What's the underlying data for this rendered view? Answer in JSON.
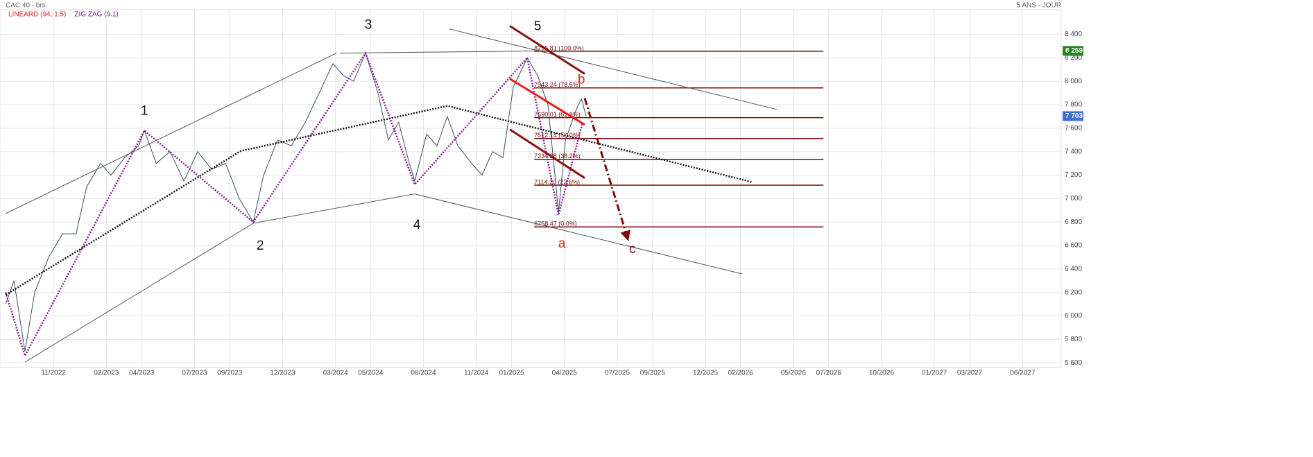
{
  "chart_data": {
    "type": "line",
    "title": "CAC 40 - brs",
    "subtitle": "5 ANS - JOUR",
    "indicators": [
      {
        "name": "LINEARD (94, 1.5)",
        "color": "#e8201a"
      },
      {
        "name": "ZIG ZAG (9.1)",
        "color": "#8b1a9b"
      }
    ],
    "xlim": [
      2022.58,
      2027.6
    ],
    "ylim": [
      5560,
      8610
    ],
    "grid": true,
    "xticks": [
      {
        "value": 2022.833,
        "label": "11/2022"
      },
      {
        "value": 2023.083,
        "label": "02/2023"
      },
      {
        "value": 2023.25,
        "label": "04/2023"
      },
      {
        "value": 2023.5,
        "label": "07/2023"
      },
      {
        "value": 2023.667,
        "label": "09/2023"
      },
      {
        "value": 2023.917,
        "label": "12/2023"
      },
      {
        "value": 2024.167,
        "label": "03/2024"
      },
      {
        "value": 2024.333,
        "label": "05/2024"
      },
      {
        "value": 2024.583,
        "label": "08/2024"
      },
      {
        "value": 2024.833,
        "label": "11/2024"
      },
      {
        "value": 2025.0,
        "label": "01/2025"
      },
      {
        "value": 2025.25,
        "label": "04/2025"
      },
      {
        "value": 2025.5,
        "label": "07/2025"
      },
      {
        "value": 2025.667,
        "label": "09/2025"
      },
      {
        "value": 2025.917,
        "label": "12/2025"
      },
      {
        "value": 2026.083,
        "label": "02/2026"
      },
      {
        "value": 2026.333,
        "label": "05/2026"
      },
      {
        "value": 2026.5,
        "label": "07/2026"
      },
      {
        "value": 2026.75,
        "label": "10/2026"
      },
      {
        "value": 2027.0,
        "label": "01/2027"
      },
      {
        "value": 2027.167,
        "label": "03/2027"
      },
      {
        "value": 2027.417,
        "label": "06/2027"
      }
    ],
    "yticks": [
      {
        "value": 5600,
        "label": "5 600"
      },
      {
        "value": 5800,
        "label": "5 800"
      },
      {
        "value": 6000,
        "label": "6 000"
      },
      {
        "value": 6200,
        "label": "6 200"
      },
      {
        "value": 6400,
        "label": "6 400"
      },
      {
        "value": 6600,
        "label": "6 600"
      },
      {
        "value": 6800,
        "label": "6 800"
      },
      {
        "value": 7000,
        "label": "7 000"
      },
      {
        "value": 7200,
        "label": "7 200"
      },
      {
        "value": 7400,
        "label": "7 400"
      },
      {
        "value": 7600,
        "label": "7 600"
      },
      {
        "value": 7800,
        "label": "7 800"
      },
      {
        "value": 8000,
        "label": "8 000"
      },
      {
        "value": 8200,
        "label": "8 200"
      },
      {
        "value": 8400,
        "label": "8 400"
      }
    ],
    "series": [
      {
        "color": "#34505e",
        "x": [
          2022.607,
          2022.646,
          2022.698,
          2022.744,
          2022.81,
          2022.876,
          2022.94,
          2022.99,
          2023.056,
          2023.105,
          2023.17,
          2023.236,
          2023.263,
          2023.319,
          2023.384,
          2023.45,
          2023.515,
          2023.581,
          2023.647,
          2023.712,
          2023.778,
          2023.827,
          2023.893,
          2023.958,
          2024.024,
          2024.09,
          2024.155,
          2024.204,
          2024.253,
          2024.309,
          2024.368,
          2024.417,
          2024.466,
          2024.516,
          2024.542,
          2024.598,
          2024.647,
          2024.696,
          2024.746,
          2024.811,
          2024.86,
          2024.91,
          2024.959,
          2025.008,
          2025.074,
          2025.123,
          2025.172,
          2025.205,
          2025.222,
          2025.255,
          2025.304,
          2025.33,
          2025.353
        ],
        "values": [
          6100,
          6300,
          5700,
          6200,
          6500,
          6700,
          6700,
          7100,
          7300,
          7200,
          7350,
          7450,
          7580,
          7300,
          7400,
          7150,
          7400,
          7250,
          7300,
          7000,
          6800,
          7200,
          7500,
          7450,
          7650,
          7900,
          8150,
          8050,
          8000,
          8240,
          7900,
          7500,
          7650,
          7300,
          7150,
          7550,
          7450,
          7700,
          7450,
          7300,
          7200,
          7400,
          7350,
          7950,
          8200,
          8050,
          7800,
          7200,
          6880,
          7500,
          7750,
          7850,
          7703
        ]
      }
    ],
    "zigzag": {
      "color": "#8b1a9b",
      "x": [
        2022.607,
        2022.698,
        2023.263,
        2023.778,
        2024.309,
        2024.542,
        2025.074,
        2025.222,
        2025.336
      ],
      "values": [
        6200,
        5660,
        7580,
        6800,
        8240,
        7120,
        8200,
        6860,
        7650
      ]
    },
    "lines": [
      {
        "x": [
          2022.607,
          2024.172
        ],
        "y": [
          6873,
          8240
        ],
        "color": "#555555",
        "width": 1,
        "dash": "none"
      },
      {
        "x": [
          2024.188,
          2025.123
        ],
        "y": [
          8240,
          8258
        ],
        "color": "#555555",
        "width": 1,
        "dash": "none"
      },
      {
        "x": [
          2024.703,
          2026.255
        ],
        "y": [
          8447,
          7760
        ],
        "color": "#555555",
        "width": 1,
        "dash": "none"
      },
      {
        "x": [
          2022.698,
          2023.778
        ],
        "y": [
          5606,
          6790
        ],
        "color": "#555555",
        "width": 1,
        "dash": "none"
      },
      {
        "x": [
          2023.778,
          2024.539
        ],
        "y": [
          6790,
          7039
        ],
        "color": "#555555",
        "width": 1,
        "dash": "none"
      },
      {
        "x": [
          2024.542,
          2026.091
        ],
        "y": [
          7039,
          6358
        ],
        "color": "#555555",
        "width": 1,
        "dash": "none"
      },
      {
        "x": [
          2022.607,
          2023.719,
          2024.696,
          2026.14
        ],
        "y": [
          6180,
          7406,
          7790,
          7140
        ],
        "color": "#111111",
        "width": 2.5,
        "dash": "2 2"
      },
      {
        "x": [
          2024.992,
          2025.346
        ],
        "y": [
          8471,
          8063
        ],
        "color": "#8b1010",
        "width": 3,
        "dash": "none"
      },
      {
        "x": [
          2024.992,
          2025.346
        ],
        "y": [
          7589,
          7175
        ],
        "color": "#8b1010",
        "width": 3,
        "dash": "none"
      },
      {
        "x": [
          2024.992,
          2025.346
        ],
        "y": [
          8021,
          7630
        ],
        "color": "#ee1c1c",
        "width": 3,
        "dash": "none"
      },
      {
        "x": [
          2025.346,
          2025.55
        ],
        "y": [
          7855,
          6654
        ],
        "color": "#7a0a0a",
        "width": 3,
        "dash": "10 4 2 4",
        "arrow": true
      }
    ],
    "fib_x": [
      2025.107,
      2026.475
    ],
    "fib_color": "#7a0a0a",
    "fib_levels": [
      {
        "value": 8255.81,
        "label": "8255.81  (100.0%)"
      },
      {
        "value": 7943.24,
        "label": "7943.24  (78.6%)"
      },
      {
        "value": 7690.01,
        "label": "7690.01  (61.8%)"
      },
      {
        "value": 7512.14,
        "label": "7512.14  (50.0%)"
      },
      {
        "value": 7334.28,
        "label": "7334.28  (38.2%)"
      },
      {
        "value": 7114.2,
        "label": "7114.20  (23.6%)"
      },
      {
        "value": 6758.47,
        "label": "6758.47  (0.0%)"
      }
    ],
    "annotations": [
      {
        "text": "1",
        "x": 2023.263,
        "y": 7743,
        "color": "#111111"
      },
      {
        "text": "2",
        "x": 2023.811,
        "y": 6595,
        "color": "#111111"
      },
      {
        "text": "3",
        "x": 2024.322,
        "y": 8477,
        "color": "#111111"
      },
      {
        "text": "4",
        "x": 2024.552,
        "y": 6772,
        "color": "#111111"
      },
      {
        "text": "5",
        "x": 2025.123,
        "y": 8465,
        "color": "#111111"
      },
      {
        "text": "a",
        "x": 2025.238,
        "y": 6612,
        "color": "#e8201a"
      },
      {
        "text": "b",
        "x": 2025.33,
        "y": 8009,
        "color": "#e8201a"
      },
      {
        "text": "c",
        "x": 2025.572,
        "y": 6565,
        "color": "#7a0a0a"
      }
    ],
    "price_tags": [
      {
        "value": 8259,
        "label": "8 259",
        "color": "#1f8a1f"
      },
      {
        "value": 7703,
        "label": "7 703",
        "color": "#3b6fd8"
      }
    ]
  }
}
